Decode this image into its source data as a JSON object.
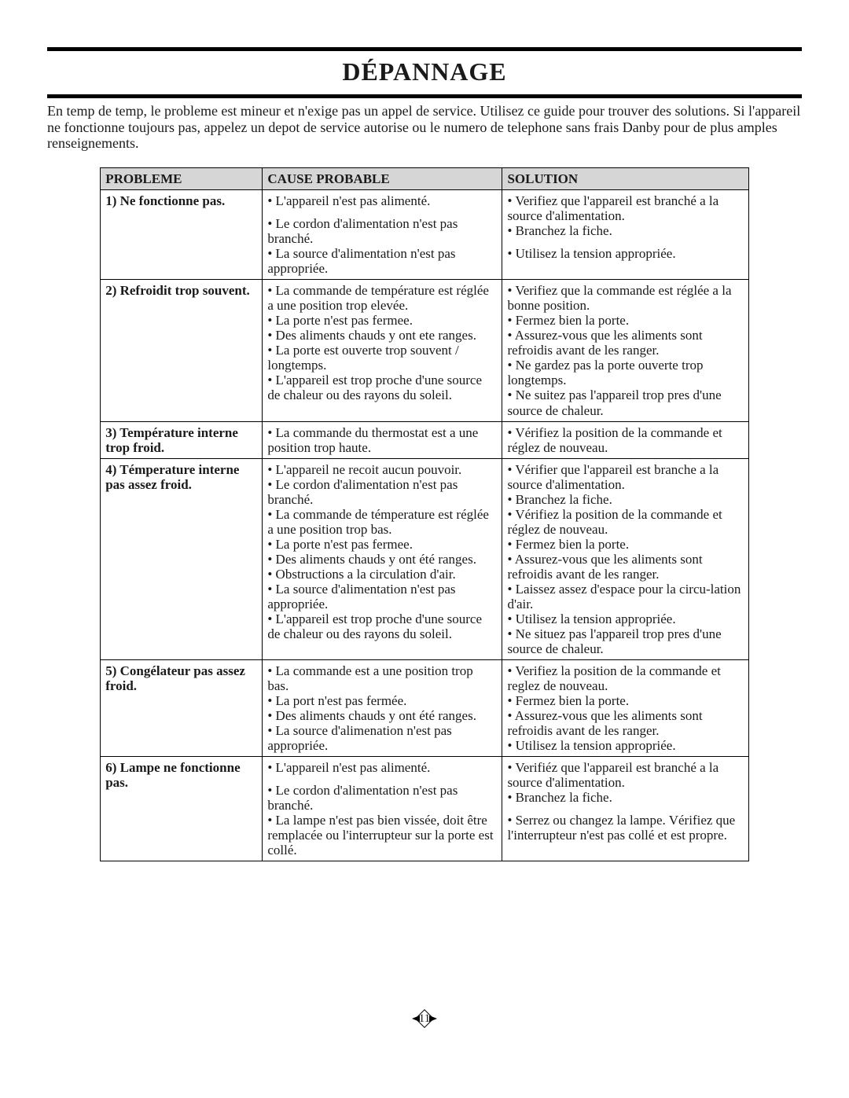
{
  "title": "DÉPANNAGE",
  "intro": "En temp de temp, le probleme est mineur et n'exige pas un appel de service. Utilisez ce guide pour trouver des solutions. Si l'appareil ne fonctionne toujours pas, appelez un depot de service autorise ou le numero de telephone sans frais Danby pour de plus amples renseignements.",
  "columns": {
    "problem": "PROBLEME",
    "cause": "CAUSE PROBABLE",
    "solution": "SOLUTION"
  },
  "rows": [
    {
      "problem": "1) Ne fonctionne pas.",
      "cause": "• L'appareil n'est pas alimenté.\n\n• Le cordon d'alimentation n'est pas branché.\n• La source d'alimentation n'est pas appropriée.",
      "solution": "• Verifiez que l'appareil est branché a la source d'alimentation.\n• Branchez la fiche.\n\n• Utilisez la tension appropriée."
    },
    {
      "problem": "2) Refroidit trop souvent.",
      "cause": "• La commande de température est réglée a une position trop elevée.\n• La porte n'est pas fermee.\n• Des aliments chauds y ont ete ranges.\n• La porte est ouverte trop souvent / longtemps.\n• L'appareil est trop proche d'une source de chaleur ou des rayons du soleil.",
      "solution": "• Verifiez que la commande est réglée a la bonne position.\n• Fermez bien la porte.\n• Assurez-vous que les aliments sont refroidis avant de les ranger.\n• Ne gardez pas la porte ouverte trop longtemps.\n• Ne suitez pas l'appareil trop pres d'une source de chaleur."
    },
    {
      "problem": "3) Température interne trop froid.",
      "cause": "• La commande du thermostat est a une position trop haute.",
      "solution": "• Vérifiez la position de la commande et réglez de nouveau."
    },
    {
      "problem": "4) Témperature interne pas assez froid.",
      "cause": "• L'appareil ne recoit aucun pouvoir.\n• Le cordon d'alimentation n'est pas branché.\n• La commande de témperature est réglée a une position trop bas.\n• La porte n'est pas fermee.\n• Des aliments chauds y ont été ranges.\n• Obstructions a la circulation d'air.\n• La source d'alimentation n'est pas appropriée.\n• L'appareil est trop proche d'une source de chaleur ou des rayons du soleil.",
      "solution": "• Vérifier que l'appareil est branche a la source d'alimentation.\n• Branchez la fiche.\n• Vérifiez la position de la commande et réglez de nouveau.\n• Fermez bien la porte.\n• Assurez-vous que les aliments sont refroidis avant de les ranger.\n• Laissez assez d'espace pour la circu-lation d'air.\n• Utilisez la tension appropriée.\n• Ne situez pas l'appareil trop pres d'une source de chaleur."
    },
    {
      "problem": "5) Congélateur pas assez froid.",
      "cause": "• La commande est a une position trop bas.\n• La port n'est pas fermée.\n• Des aliments chauds y ont été ranges.\n• La source d'alimenation n'est pas appropriée.",
      "solution": "• Verifiez la position de la commande et reglez de nouveau.\n• Fermez bien la porte.\n• Assurez-vous que les aliments sont refroidis avant de les ranger.\n• Utilisez la tension appropriée."
    },
    {
      "problem": "6) Lampe ne fonctionne pas.",
      "cause": "• L'appareil n'est pas alimenté.\n\n• Le cordon d'alimentation n'est pas branché.\n• La lampe n'est pas bien vissée, doit être remplacée ou l'interrupteur sur la porte est collé.",
      "solution": "• Verifiéz que l'appareil est branché a la source d'alimentation.\n• Branchez la fiche.\n\n• Serrez ou changez la lampe. Vérifiez que l'interrupteur n'est pas collé et est propre."
    }
  ],
  "page_number": "11",
  "style": {
    "title_fontsize": 32,
    "body_fontsize": 18,
    "table_fontsize": 17,
    "header_bg": "#d6d6d6",
    "border_color": "#000000",
    "text_color": "#1a1a1a",
    "font_family": "Times New Roman"
  }
}
